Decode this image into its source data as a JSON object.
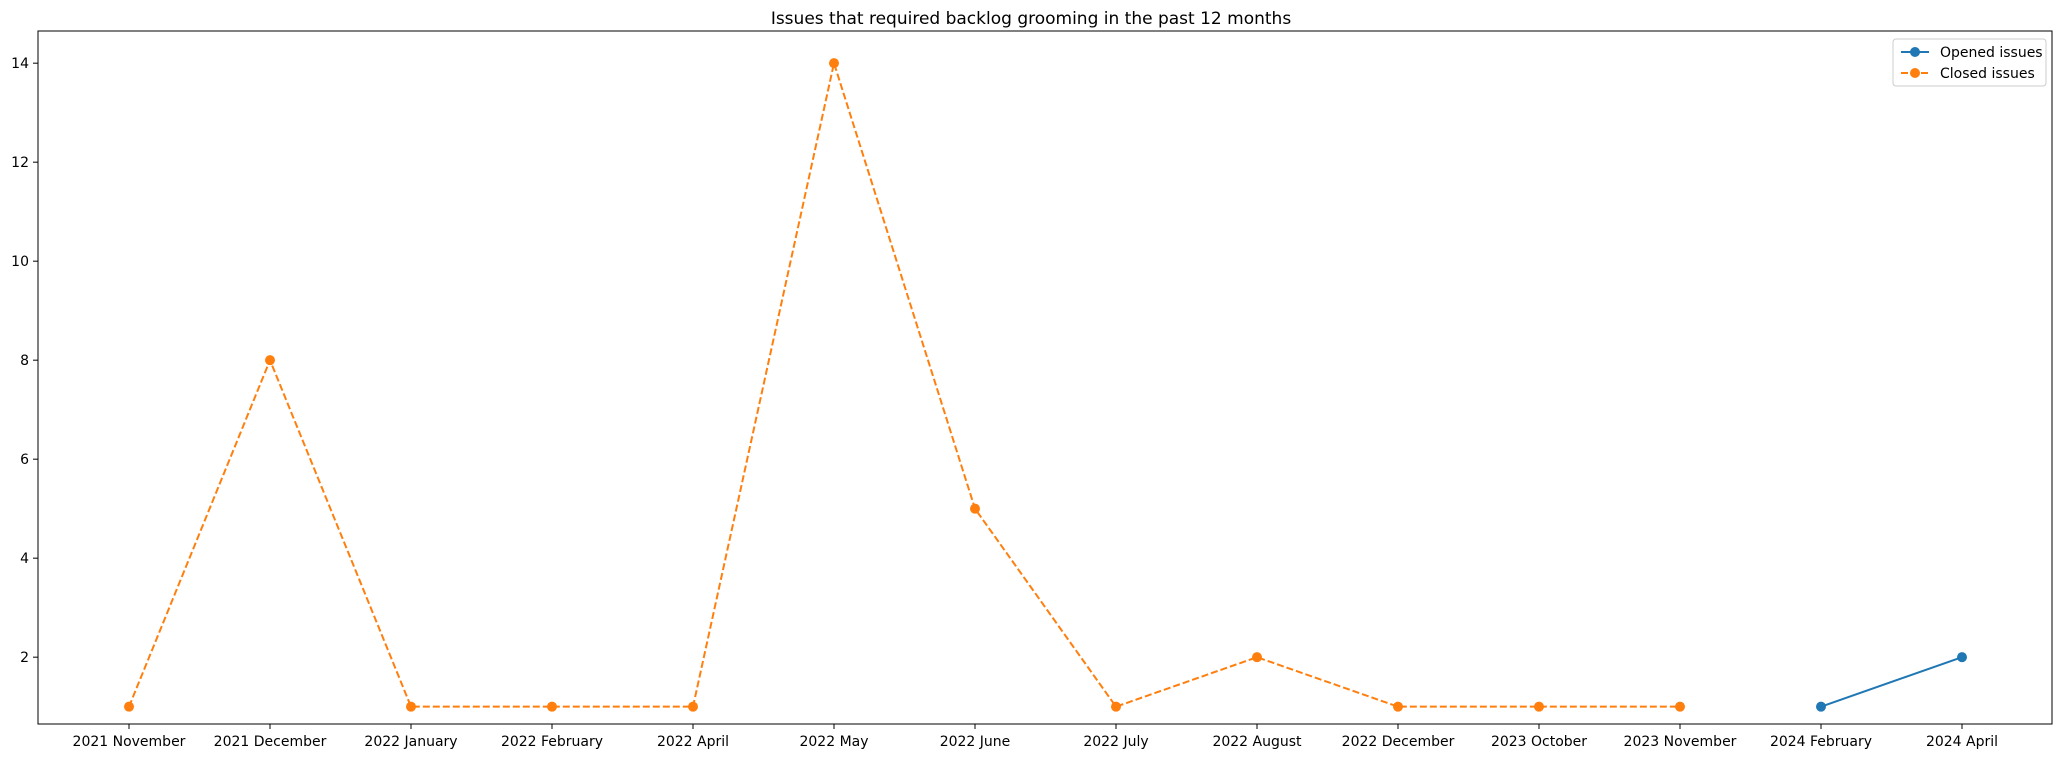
{
  "chart_data": {
    "type": "line",
    "title": "Issues that required backlog grooming in the past 12 months",
    "xlabel": "",
    "ylabel": "",
    "categories": [
      "2021 November",
      "2021 December",
      "2022 January",
      "2022 February",
      "2022 April",
      "2022 May",
      "2022 June",
      "2022 July",
      "2022 August",
      "2022 December",
      "2023 October",
      "2023 November",
      "2024 February",
      "2024 April"
    ],
    "ylim": [
      0.65,
      14.65
    ],
    "yticks": [
      2,
      4,
      6,
      8,
      10,
      12,
      14
    ],
    "grid": false,
    "legend_position": "top-right",
    "series": [
      {
        "name": "Opened issues",
        "color": "#1f77b4",
        "linestyle": "solid",
        "marker": "circle",
        "points": [
          {
            "category": "2024 February",
            "value": 1
          },
          {
            "category": "2024 April",
            "value": 2
          }
        ]
      },
      {
        "name": "Closed issues",
        "color": "#ff7f0e",
        "linestyle": "dashed",
        "marker": "circle",
        "points": [
          {
            "category": "2021 November",
            "value": 1
          },
          {
            "category": "2021 December",
            "value": 8
          },
          {
            "category": "2022 January",
            "value": 1
          },
          {
            "category": "2022 February",
            "value": 1
          },
          {
            "category": "2022 April",
            "value": 1
          },
          {
            "category": "2022 May",
            "value": 14
          },
          {
            "category": "2022 June",
            "value": 5
          },
          {
            "category": "2022 July",
            "value": 1
          },
          {
            "category": "2022 August",
            "value": 2
          },
          {
            "category": "2022 December",
            "value": 1
          },
          {
            "category": "2023 October",
            "value": 1
          },
          {
            "category": "2023 November",
            "value": 1
          }
        ]
      }
    ]
  }
}
